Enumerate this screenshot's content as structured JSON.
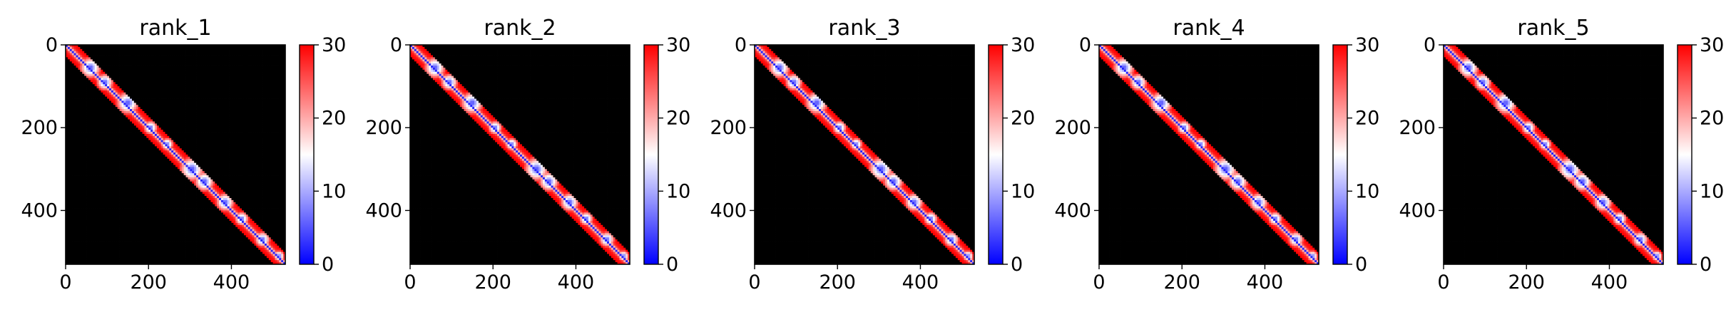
{
  "figure": {
    "panels": [
      {
        "title": "rank_1"
      },
      {
        "title": "rank_2"
      },
      {
        "title": "rank_3"
      },
      {
        "title": "rank_4"
      },
      {
        "title": "rank_5"
      }
    ]
  },
  "chart_data": [
    {
      "type": "heatmap",
      "title": "rank_1",
      "matrix_size": 530,
      "xlim": [
        0,
        530
      ],
      "ylim": [
        530,
        0
      ],
      "x_ticks": [
        0,
        200,
        400
      ],
      "y_ticks": [
        0,
        200,
        400
      ],
      "y_inverted": true,
      "colorbar": {
        "range": [
          0,
          30
        ],
        "ticks": [
          0,
          10,
          20,
          30
        ],
        "colormap": "bwr"
      },
      "grid": false,
      "legend": "none"
    },
    {
      "type": "heatmap",
      "title": "rank_2",
      "matrix_size": 530,
      "xlim": [
        0,
        530
      ],
      "ylim": [
        530,
        0
      ],
      "x_ticks": [
        0,
        200,
        400
      ],
      "y_ticks": [
        0,
        200,
        400
      ],
      "y_inverted": true,
      "colorbar": {
        "range": [
          0,
          30
        ],
        "ticks": [
          0,
          10,
          20,
          30
        ],
        "colormap": "bwr"
      },
      "grid": false,
      "legend": "none"
    },
    {
      "type": "heatmap",
      "title": "rank_3",
      "matrix_size": 530,
      "xlim": [
        0,
        530
      ],
      "ylim": [
        530,
        0
      ],
      "x_ticks": [
        0,
        200,
        400
      ],
      "y_ticks": [
        0,
        200,
        400
      ],
      "y_inverted": true,
      "colorbar": {
        "range": [
          0,
          30
        ],
        "ticks": [
          0,
          10,
          20,
          30
        ],
        "colormap": "bwr"
      },
      "grid": false,
      "legend": "none"
    },
    {
      "type": "heatmap",
      "title": "rank_4",
      "matrix_size": 530,
      "xlim": [
        0,
        530
      ],
      "ylim": [
        530,
        0
      ],
      "x_ticks": [
        0,
        200,
        400
      ],
      "y_ticks": [
        0,
        200,
        400
      ],
      "y_inverted": true,
      "colorbar": {
        "range": [
          0,
          30
        ],
        "ticks": [
          0,
          10,
          20,
          30
        ],
        "colormap": "bwr"
      },
      "grid": false,
      "legend": "none"
    },
    {
      "type": "heatmap",
      "title": "rank_5",
      "matrix_size": 530,
      "xlim": [
        0,
        530
      ],
      "ylim": [
        530,
        0
      ],
      "x_ticks": [
        0,
        200,
        400
      ],
      "y_ticks": [
        0,
        200,
        400
      ],
      "y_inverted": true,
      "colorbar": {
        "range": [
          0,
          30
        ],
        "ticks": [
          0,
          10,
          20,
          30
        ],
        "colormap": "bwr"
      },
      "grid": false,
      "legend": "none"
    }
  ]
}
